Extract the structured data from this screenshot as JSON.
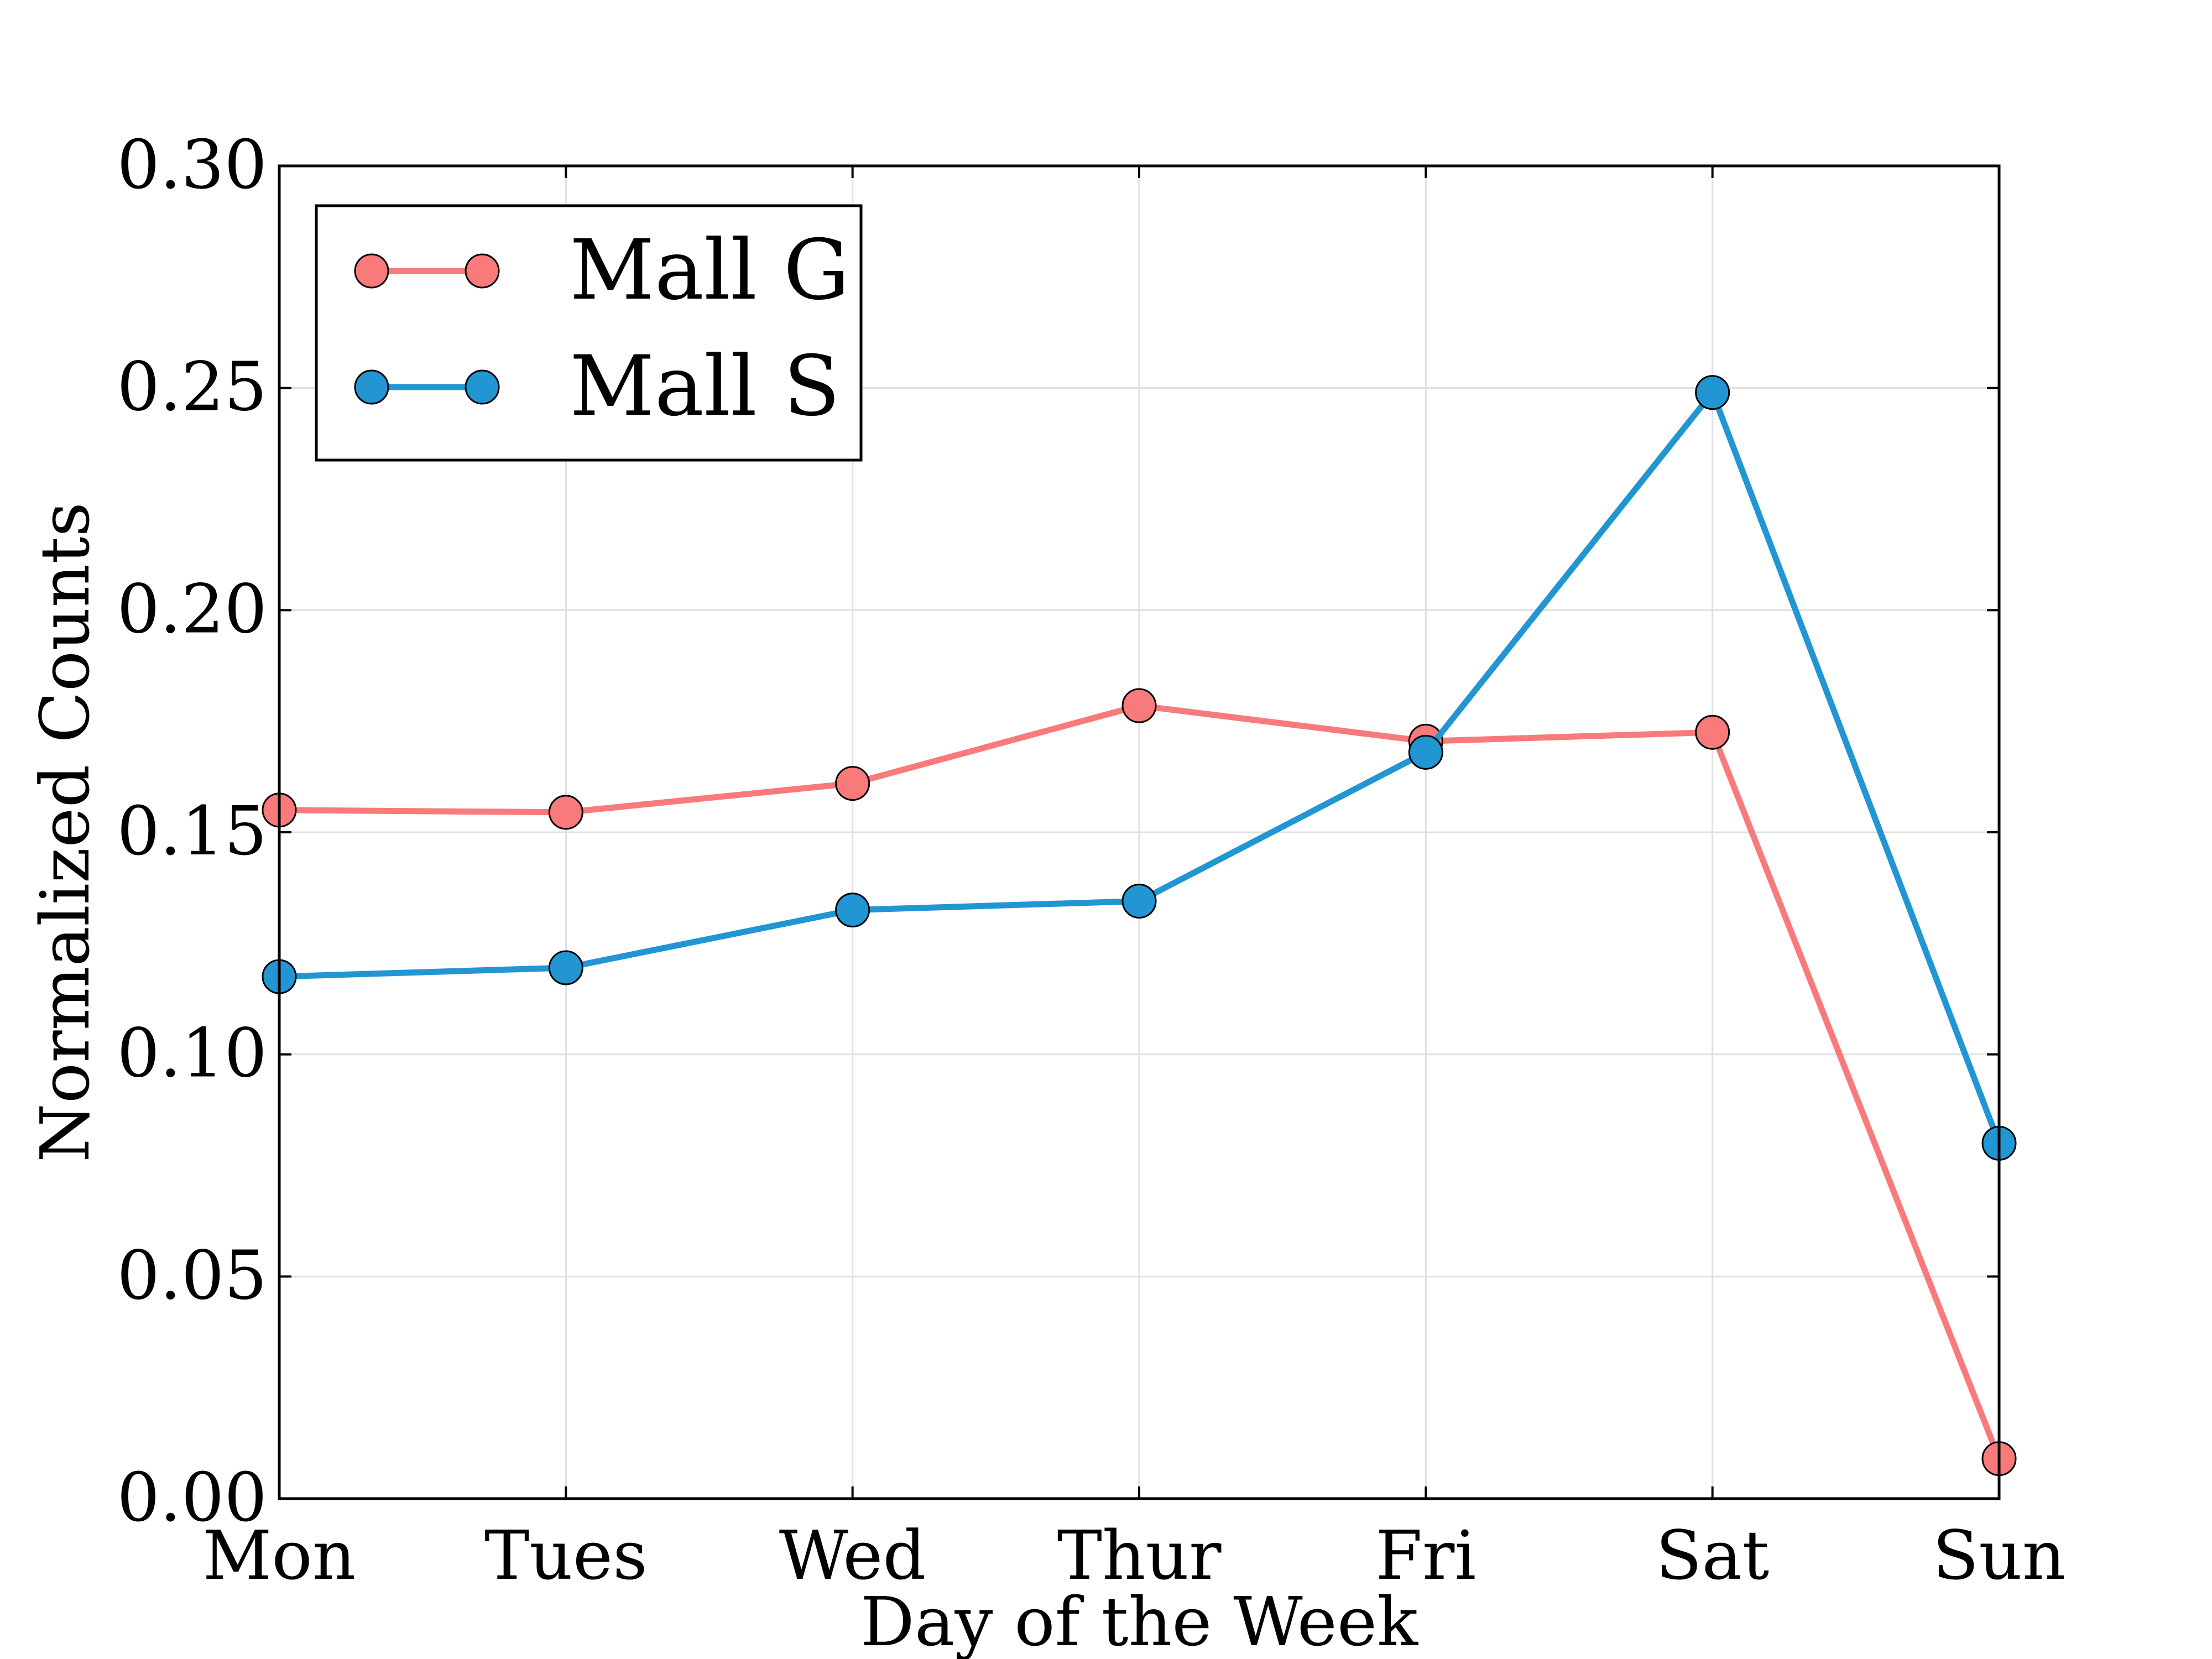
{
  "chart_data": {
    "type": "line",
    "categories": [
      "Mon",
      "Tues",
      "Wed",
      "Thur",
      "Fri",
      "Sat",
      "Sun"
    ],
    "series": [
      {
        "name": "Mall G",
        "color": "#f87a7a",
        "values": [
          0.155,
          0.1545,
          0.161,
          0.1785,
          0.1705,
          0.1725,
          0.009
        ]
      },
      {
        "name": "Mall S",
        "color": "#2196d3",
        "values": [
          0.1175,
          0.1195,
          0.1325,
          0.1345,
          0.168,
          0.249,
          0.08
        ]
      }
    ],
    "title": "",
    "xlabel": "Day of the Week",
    "ylabel": "Normalized Counts",
    "ylim": [
      0,
      0.3
    ],
    "yticks": [
      "0.00",
      "0.05",
      "0.10",
      "0.15",
      "0.20",
      "0.25",
      "0.30"
    ],
    "grid": true,
    "legend_position": "top-left"
  }
}
